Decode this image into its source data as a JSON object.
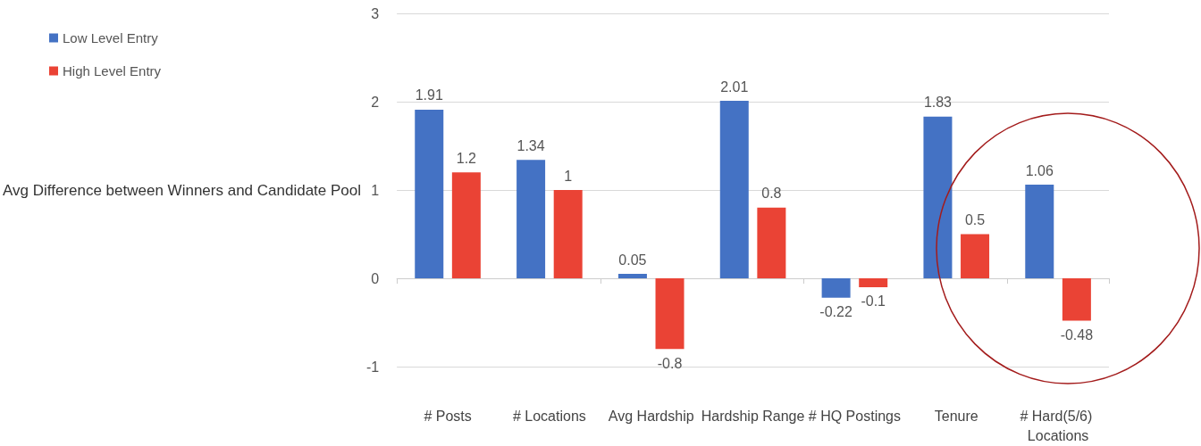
{
  "chart_data": {
    "type": "bar",
    "ylabel": "Avg Difference between Winners and Candidate Pool",
    "categories": [
      "# Posts",
      "# Locations",
      "Avg Hardship",
      "Hardship Range",
      "# HQ Postings",
      "Tenure",
      "# Hard(5/6) Locations"
    ],
    "series": [
      {
        "name": "Low Level Entry",
        "color": "#4472c4",
        "values": [
          1.91,
          1.34,
          0.05,
          2.01,
          -0.22,
          1.83,
          1.06
        ]
      },
      {
        "name": "High Level Entry",
        "color": "#ea4335",
        "values": [
          1.2,
          1,
          -0.8,
          0.8,
          -0.1,
          0.5,
          -0.48
        ]
      }
    ],
    "ylim": [
      -1,
      3
    ],
    "yticks": [
      -1,
      0,
      1,
      2,
      3
    ],
    "grid": "y",
    "legend": "top left",
    "data_labels": true
  }
}
